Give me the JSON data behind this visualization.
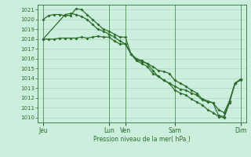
{
  "xlabel": "Pression niveau de la mer( hPa )",
  "bg_color": "#cceedd",
  "line_color": "#2d6e2d",
  "grid_color_major": "#aaccbb",
  "grid_color_minor": "#bbddcc",
  "ylim": [
    1009.5,
    1021.5
  ],
  "yticks": [
    1010,
    1011,
    1012,
    1013,
    1014,
    1015,
    1016,
    1017,
    1018,
    1019,
    1020,
    1021
  ],
  "xtick_labels": [
    "Jeu",
    "Lun",
    "Ven",
    "Sam",
    "Dim"
  ],
  "xtick_positions": [
    0,
    12,
    15,
    24,
    36
  ],
  "vline_positions": [
    0,
    12,
    15,
    24,
    36
  ],
  "xlim": [
    -1,
    37
  ],
  "line1_x": [
    0,
    1,
    2,
    3,
    4,
    5,
    6,
    7,
    8,
    9,
    10,
    11,
    12,
    13,
    14,
    15,
    16,
    17,
    18,
    19,
    20,
    21,
    22,
    23,
    24,
    25,
    26,
    27,
    28,
    29,
    30,
    31,
    32,
    33,
    34,
    35,
    36
  ],
  "line1_y": [
    1018.0,
    1018.0,
    1018.0,
    1018.1,
    1018.1,
    1018.1,
    1018.1,
    1018.2,
    1018.1,
    1018.2,
    1018.3,
    1018.2,
    1018.2,
    1017.8,
    1017.5,
    1017.5,
    1016.5,
    1016.0,
    1015.8,
    1015.5,
    1015.2,
    1014.8,
    1014.7,
    1014.5,
    1013.8,
    1013.5,
    1013.2,
    1012.8,
    1012.5,
    1011.9,
    1011.7,
    1011.5,
    1010.8,
    1010.5,
    1011.7,
    1013.5,
    1013.8
  ],
  "line2_x": [
    0,
    1,
    2,
    3,
    4,
    5,
    6,
    7,
    8,
    9,
    10,
    11,
    12,
    13,
    14,
    15,
    16,
    17,
    18,
    19,
    20,
    21,
    22,
    23,
    24,
    25,
    26,
    27,
    28,
    29,
    30,
    31,
    32,
    33,
    34,
    35,
    36
  ],
  "line2_y": [
    1020.0,
    1020.4,
    1020.5,
    1020.5,
    1020.4,
    1020.4,
    1021.1,
    1021.0,
    1020.5,
    1020.0,
    1019.5,
    1019.0,
    1018.8,
    1018.5,
    1018.2,
    1018.2,
    1016.5,
    1015.9,
    1015.7,
    1015.5,
    1014.8,
    1014.2,
    1013.8,
    1013.5,
    1013.2,
    1012.9,
    1012.8,
    1012.5,
    1012.3,
    1011.8,
    1011.6,
    1011.5,
    1010.2,
    1010.1,
    1011.7,
    1013.5,
    1013.9
  ],
  "line3_x": [
    0,
    4,
    5,
    6,
    7,
    8,
    9,
    10,
    11,
    12,
    13,
    14,
    15,
    16,
    17,
    18,
    19,
    20,
    21,
    22,
    23,
    24,
    25,
    26,
    27,
    28,
    29,
    30,
    31,
    32,
    33,
    34,
    35,
    36
  ],
  "line3_y": [
    1018.0,
    1020.5,
    1020.6,
    1020.5,
    1020.3,
    1020.0,
    1019.5,
    1019.0,
    1018.8,
    1018.5,
    1018.2,
    1017.8,
    1017.5,
    1016.5,
    1015.8,
    1015.5,
    1015.2,
    1014.5,
    1014.2,
    1013.8,
    1013.5,
    1012.8,
    1012.5,
    1012.3,
    1011.9,
    1011.6,
    1011.3,
    1010.8,
    1010.5,
    1010.1,
    1010.0,
    1011.5,
    1013.5,
    1013.9
  ]
}
